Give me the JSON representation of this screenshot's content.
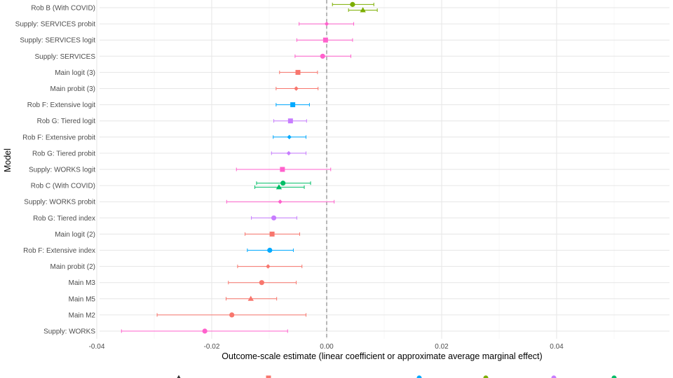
{
  "chart_data": {
    "type": "scatter",
    "subtype": "coefficient-plot-with-error-bars",
    "xlabel": "Outcome-scale estimate (linear coefficient or approximate average marginal effect)",
    "ylabel": "Model",
    "xlim": [
      -0.04,
      0.06
    ],
    "xticks": [
      -0.04,
      -0.02,
      0.0,
      0.02,
      0.04
    ],
    "xtick_labels": [
      "-0.04",
      "-0.02",
      "0.00",
      "0.02",
      "0.04"
    ],
    "reference_line": 0,
    "grid": true,
    "legend_position": "bottom",
    "categories": [
      "Rob B (With COVID)",
      "Supply: SERVICES probit",
      "Supply: SERVICES logit",
      "Supply: SERVICES",
      "Main logit (3)",
      "Main probit (3)",
      "Rob F: Extensive logit",
      "Rob G: Tiered logit",
      "Rob F: Extensive probit",
      "Rob G: Tiered probit",
      "Supply: WORKS logit",
      "Rob C (With COVID)",
      "Supply: WORKS probit",
      "Rob G: Tiered index",
      "Main logit (2)",
      "Rob F: Extensive index",
      "Main probit (2)",
      "Main M3",
      "Main M5",
      "Main M2",
      "Supply: WORKS"
    ],
    "groups": [
      {
        "key": "main",
        "color": "#F8766D"
      },
      {
        "key": "robb",
        "color": "#7CAE00"
      },
      {
        "key": "robc",
        "color": "#00BE67"
      },
      {
        "key": "robf",
        "color": "#00A9FF"
      },
      {
        "key": "robg",
        "color": "#C77CFF"
      },
      {
        "key": "supply",
        "color": "#FF61CC"
      }
    ],
    "points": [
      {
        "category": "Rob B (With COVID)",
        "group": "robb",
        "shape": "circle",
        "offset": -0.2,
        "estimate": 0.0045,
        "lo": 0.001,
        "hi": 0.0082
      },
      {
        "category": "Rob B (With COVID)",
        "group": "robb",
        "shape": "triangle",
        "offset": 0.15,
        "estimate": 0.0063,
        "lo": 0.0038,
        "hi": 0.0088
      },
      {
        "category": "Supply: SERVICES probit",
        "group": "supply",
        "shape": "diamond",
        "offset": 0,
        "estimate": 0.0,
        "lo": -0.0048,
        "hi": 0.0047
      },
      {
        "category": "Supply: SERVICES logit",
        "group": "supply",
        "shape": "square",
        "offset": 0,
        "estimate": -0.0002,
        "lo": -0.0052,
        "hi": 0.0045
      },
      {
        "category": "Supply: SERVICES",
        "group": "supply",
        "shape": "circle",
        "offset": 0,
        "estimate": -0.0007,
        "lo": -0.0055,
        "hi": 0.0042
      },
      {
        "category": "Main logit (3)",
        "group": "main",
        "shape": "square",
        "offset": 0,
        "estimate": -0.005,
        "lo": -0.0082,
        "hi": -0.0016
      },
      {
        "category": "Main probit (3)",
        "group": "main",
        "shape": "diamond",
        "offset": 0,
        "estimate": -0.0053,
        "lo": -0.0088,
        "hi": -0.0015
      },
      {
        "category": "Rob F: Extensive logit",
        "group": "robf",
        "shape": "square",
        "offset": 0,
        "estimate": -0.0059,
        "lo": -0.0088,
        "hi": -0.003
      },
      {
        "category": "Rob G: Tiered logit",
        "group": "robg",
        "shape": "square",
        "offset": 0,
        "estimate": -0.0063,
        "lo": -0.0092,
        "hi": -0.0035
      },
      {
        "category": "Rob F: Extensive probit",
        "group": "robf",
        "shape": "diamond",
        "offset": 0,
        "estimate": -0.0065,
        "lo": -0.0093,
        "hi": -0.0036
      },
      {
        "category": "Rob G: Tiered probit",
        "group": "robg",
        "shape": "diamond",
        "offset": 0,
        "estimate": -0.0066,
        "lo": -0.0096,
        "hi": -0.0036
      },
      {
        "category": "Supply: WORKS logit",
        "group": "supply",
        "shape": "square",
        "offset": 0,
        "estimate": -0.0077,
        "lo": -0.0157,
        "hi": 0.0007
      },
      {
        "category": "Rob C (With COVID)",
        "group": "robc",
        "shape": "circle",
        "offset": -0.15,
        "estimate": -0.0076,
        "lo": -0.0122,
        "hi": -0.0028
      },
      {
        "category": "Rob C (With COVID)",
        "group": "robc",
        "shape": "triangle",
        "offset": 0.1,
        "estimate": -0.0083,
        "lo": -0.0125,
        "hi": -0.0039
      },
      {
        "category": "Supply: WORKS probit",
        "group": "supply",
        "shape": "diamond",
        "offset": 0,
        "estimate": -0.0081,
        "lo": -0.0174,
        "hi": 0.0013
      },
      {
        "category": "Rob G: Tiered index",
        "group": "robg",
        "shape": "circle",
        "offset": 0,
        "estimate": -0.0092,
        "lo": -0.0131,
        "hi": -0.0052
      },
      {
        "category": "Main logit (2)",
        "group": "main",
        "shape": "square",
        "offset": 0,
        "estimate": -0.0095,
        "lo": -0.0142,
        "hi": -0.0047
      },
      {
        "category": "Rob F: Extensive index",
        "group": "robf",
        "shape": "circle",
        "offset": 0,
        "estimate": -0.0099,
        "lo": -0.0138,
        "hi": -0.0058
      },
      {
        "category": "Main probit (2)",
        "group": "main",
        "shape": "diamond",
        "offset": 0,
        "estimate": -0.0102,
        "lo": -0.0155,
        "hi": -0.0043
      },
      {
        "category": "Main M3",
        "group": "main",
        "shape": "circle",
        "offset": 0,
        "estimate": -0.0113,
        "lo": -0.0171,
        "hi": -0.0053
      },
      {
        "category": "Main M5",
        "group": "main",
        "shape": "triangle",
        "offset": 0,
        "estimate": -0.0132,
        "lo": -0.0175,
        "hi": -0.0087
      },
      {
        "category": "Main M2",
        "group": "main",
        "shape": "circle",
        "offset": 0,
        "estimate": -0.0165,
        "lo": -0.0295,
        "hi": -0.0036
      },
      {
        "category": "Supply: WORKS",
        "group": "supply",
        "shape": "circle",
        "offset": 0,
        "estimate": -0.0212,
        "lo": -0.0357,
        "hi": -0.0068
      }
    ],
    "legend_partial": [
      {
        "shape": "triangle",
        "color": "#333333"
      },
      {
        "shape": "square",
        "color": "#F8766D"
      },
      {
        "shape": "circle",
        "color": "#00A9FF"
      },
      {
        "shape": "circle",
        "color": "#7CAE00"
      },
      {
        "shape": "circle",
        "color": "#C77CFF"
      },
      {
        "shape": "circle",
        "color": "#00BE67"
      }
    ]
  }
}
